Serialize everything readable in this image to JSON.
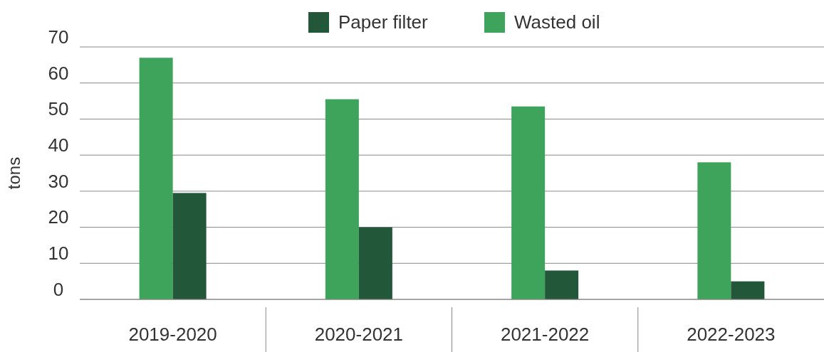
{
  "chart_data": {
    "type": "bar",
    "ylabel": "tons",
    "categories": [
      "2019-2020",
      "2020-2021",
      "2021-2022",
      "2022-2023"
    ],
    "series": [
      {
        "name": "Wasted oil",
        "color": "#3ea35b",
        "values": [
          67,
          55.5,
          53.5,
          38
        ]
      },
      {
        "name": "Paper filter",
        "color": "#22573a",
        "values": [
          29.5,
          20,
          8,
          5
        ]
      }
    ],
    "ylim": [
      0,
      70
    ],
    "yticks": [
      0,
      10,
      20,
      30,
      40,
      50,
      60,
      70
    ],
    "grid": "y",
    "legend": "top"
  }
}
